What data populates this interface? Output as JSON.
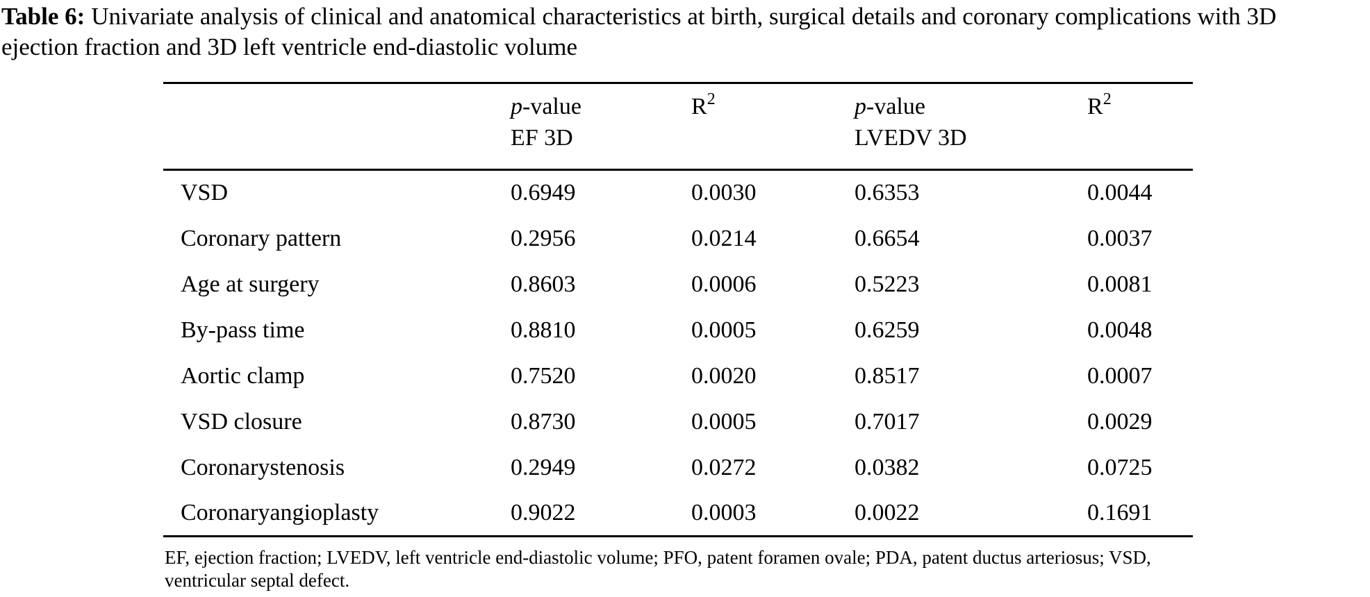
{
  "title": {
    "label": "Table 6:",
    "text": "Univariate analysis of clinical and anatomical characteristics at birth, surgical details and coronary complications with 3D ejection fraction and 3D left ventricle end-diastolic volume"
  },
  "table": {
    "header": {
      "p_italic": "p",
      "p_rest": "-value",
      "col2_sub": "EF 3D",
      "col4_sub": "LVEDV 3D",
      "r_base": "R",
      "r_sup": "2"
    },
    "rows": [
      {
        "label": "VSD",
        "values": [
          "0.6949",
          "0.0030",
          "0.6353",
          "0.0044"
        ]
      },
      {
        "label": "Coronary pattern",
        "values": [
          "0.2956",
          "0.0214",
          "0.6654",
          "0.0037"
        ]
      },
      {
        "label": "Age at surgery",
        "values": [
          "0.8603",
          "0.0006",
          "0.5223",
          "0.0081"
        ]
      },
      {
        "label": "By-pass time",
        "values": [
          "0.8810",
          "0.0005",
          "0.6259",
          "0.0048"
        ]
      },
      {
        "label": "Aortic clamp",
        "values": [
          "0.7520",
          "0.0020",
          "0.8517",
          "0.0007"
        ]
      },
      {
        "label": "VSD closure",
        "values": [
          "0.8730",
          "0.0005",
          "0.7017",
          "0.0029"
        ]
      },
      {
        "label": "Coronarystenosis",
        "values": [
          "0.2949",
          "0.0272",
          "0.0382",
          "0.0725"
        ]
      },
      {
        "label": "Coronaryangioplasty",
        "values": [
          "0.9022",
          "0.0003",
          "0.0022",
          "0.1691"
        ]
      }
    ]
  },
  "footnote": "EF, ejection fraction; LVEDV, left ventricle end-diastolic volume; PFO, patent foramen ovale; PDA, patent ductus arteriosus; VSD, ventricular septal defect."
}
